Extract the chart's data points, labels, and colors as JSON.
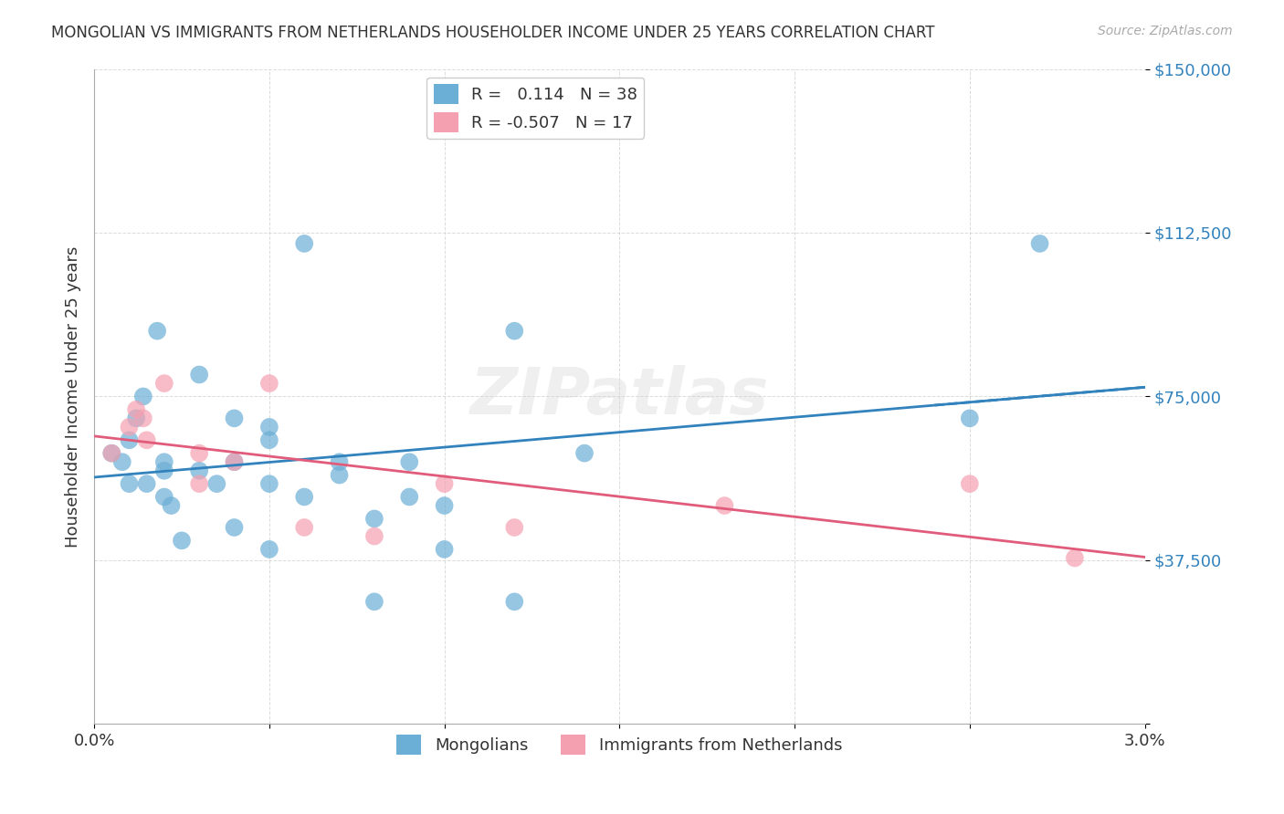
{
  "title": "MONGOLIAN VS IMMIGRANTS FROM NETHERLANDS HOUSEHOLDER INCOME UNDER 25 YEARS CORRELATION CHART",
  "source": "Source: ZipAtlas.com",
  "xlabel_label": "",
  "ylabel_label": "Householder Income Under 25 years",
  "legend_label1": "Mongolians",
  "legend_label2": "Immigrants from Netherlands",
  "R1": 0.114,
  "N1": 38,
  "R2": -0.507,
  "N2": 17,
  "xlim": [
    0.0,
    0.03
  ],
  "ylim": [
    0,
    150000
  ],
  "yticks": [
    0,
    37500,
    75000,
    112500,
    150000
  ],
  "ytick_labels": [
    "",
    "$37,500",
    "$75,000",
    "$112,500",
    "$150,000"
  ],
  "xticks": [
    0.0,
    0.005,
    0.01,
    0.015,
    0.02,
    0.025,
    0.03
  ],
  "xtick_labels": [
    "0.0%",
    "",
    "",
    "",
    "",
    "",
    "3.0%"
  ],
  "color_blue": "#6baed6",
  "color_pink": "#f4a0b0",
  "line_color_blue": "#3182bd",
  "line_color_pink": "#e05c7a",
  "bg_color": "#ffffff",
  "grid_color": "#cccccc",
  "watermark": "ZIPatlas",
  "mongolian_x": [
    0.0005,
    0.001,
    0.0008,
    0.001,
    0.0012,
    0.0015,
    0.0014,
    0.002,
    0.002,
    0.0018,
    0.002,
    0.0022,
    0.0025,
    0.003,
    0.003,
    0.0035,
    0.004,
    0.004,
    0.004,
    0.005,
    0.005,
    0.005,
    0.005,
    0.006,
    0.006,
    0.007,
    0.007,
    0.008,
    0.008,
    0.009,
    0.009,
    0.01,
    0.01,
    0.012,
    0.012,
    0.014,
    0.025,
    0.027
  ],
  "mongolian_y": [
    62000,
    55000,
    60000,
    65000,
    70000,
    55000,
    75000,
    58000,
    52000,
    90000,
    60000,
    50000,
    42000,
    80000,
    58000,
    55000,
    45000,
    70000,
    60000,
    68000,
    40000,
    55000,
    65000,
    52000,
    110000,
    60000,
    57000,
    47000,
    28000,
    52000,
    60000,
    50000,
    40000,
    90000,
    28000,
    62000,
    70000,
    110000
  ],
  "netherlands_x": [
    0.0005,
    0.001,
    0.0012,
    0.0014,
    0.0015,
    0.002,
    0.003,
    0.003,
    0.004,
    0.005,
    0.006,
    0.008,
    0.01,
    0.012,
    0.018,
    0.025,
    0.028
  ],
  "netherlands_y": [
    62000,
    68000,
    72000,
    70000,
    65000,
    78000,
    62000,
    55000,
    60000,
    78000,
    45000,
    43000,
    55000,
    45000,
    50000,
    55000,
    38000
  ]
}
